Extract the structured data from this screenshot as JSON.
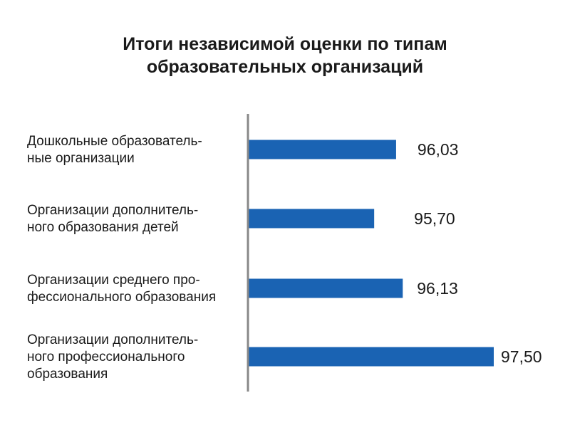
{
  "chart_data": {
    "type": "bar",
    "orientation": "horizontal",
    "title_lines": [
      "Итоги независимой оценки по типам",
      "образовательных организаций"
    ],
    "categories": [
      [
        "Дошкольные образователь-",
        "ные организации"
      ],
      [
        "Организации дополнитель-",
        "ного образования детей"
      ],
      [
        "Организации среднего про-",
        "фессионального образования"
      ],
      [
        "Организации дополнитель-",
        "ного профессионального",
        "образования"
      ]
    ],
    "values": [
      96.03,
      95.7,
      96.13,
      97.5
    ],
    "value_labels": [
      "96,03",
      "95,70",
      "96,13",
      "97,50"
    ],
    "bar_color": "#1a63b3",
    "axis_color": "#888888",
    "xlim": [
      93.8,
      97.5
    ],
    "grid": false,
    "legend": "none"
  }
}
